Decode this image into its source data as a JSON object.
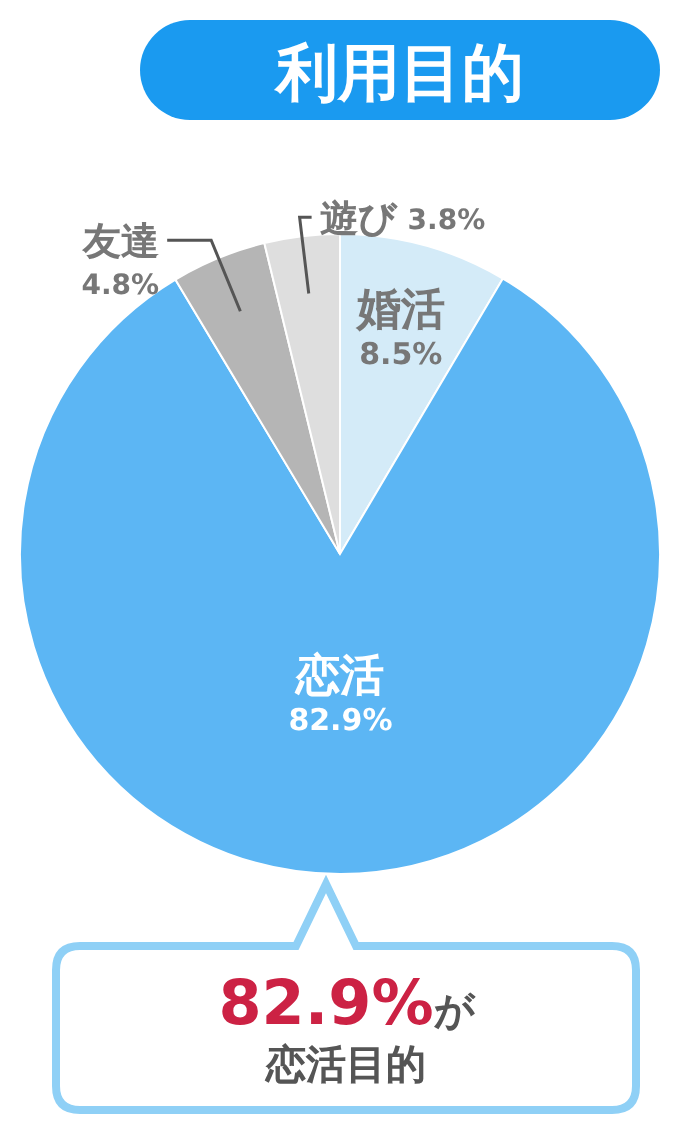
{
  "chart_data": {
    "type": "pie",
    "title": "利用目的",
    "categories": [
      "婚活",
      "恋活",
      "友達",
      "遊び"
    ],
    "values": [
      8.5,
      82.9,
      4.8,
      3.8
    ],
    "colors": [
      "#d4ebf8",
      "#5cb6f4",
      "#b5b5b5",
      "#dedede"
    ],
    "value_labels": [
      "8.5%",
      "82.9%",
      "4.8%",
      "3.8%"
    ],
    "annotations": [
      "82.9%が",
      "恋活目的"
    ]
  }
}
